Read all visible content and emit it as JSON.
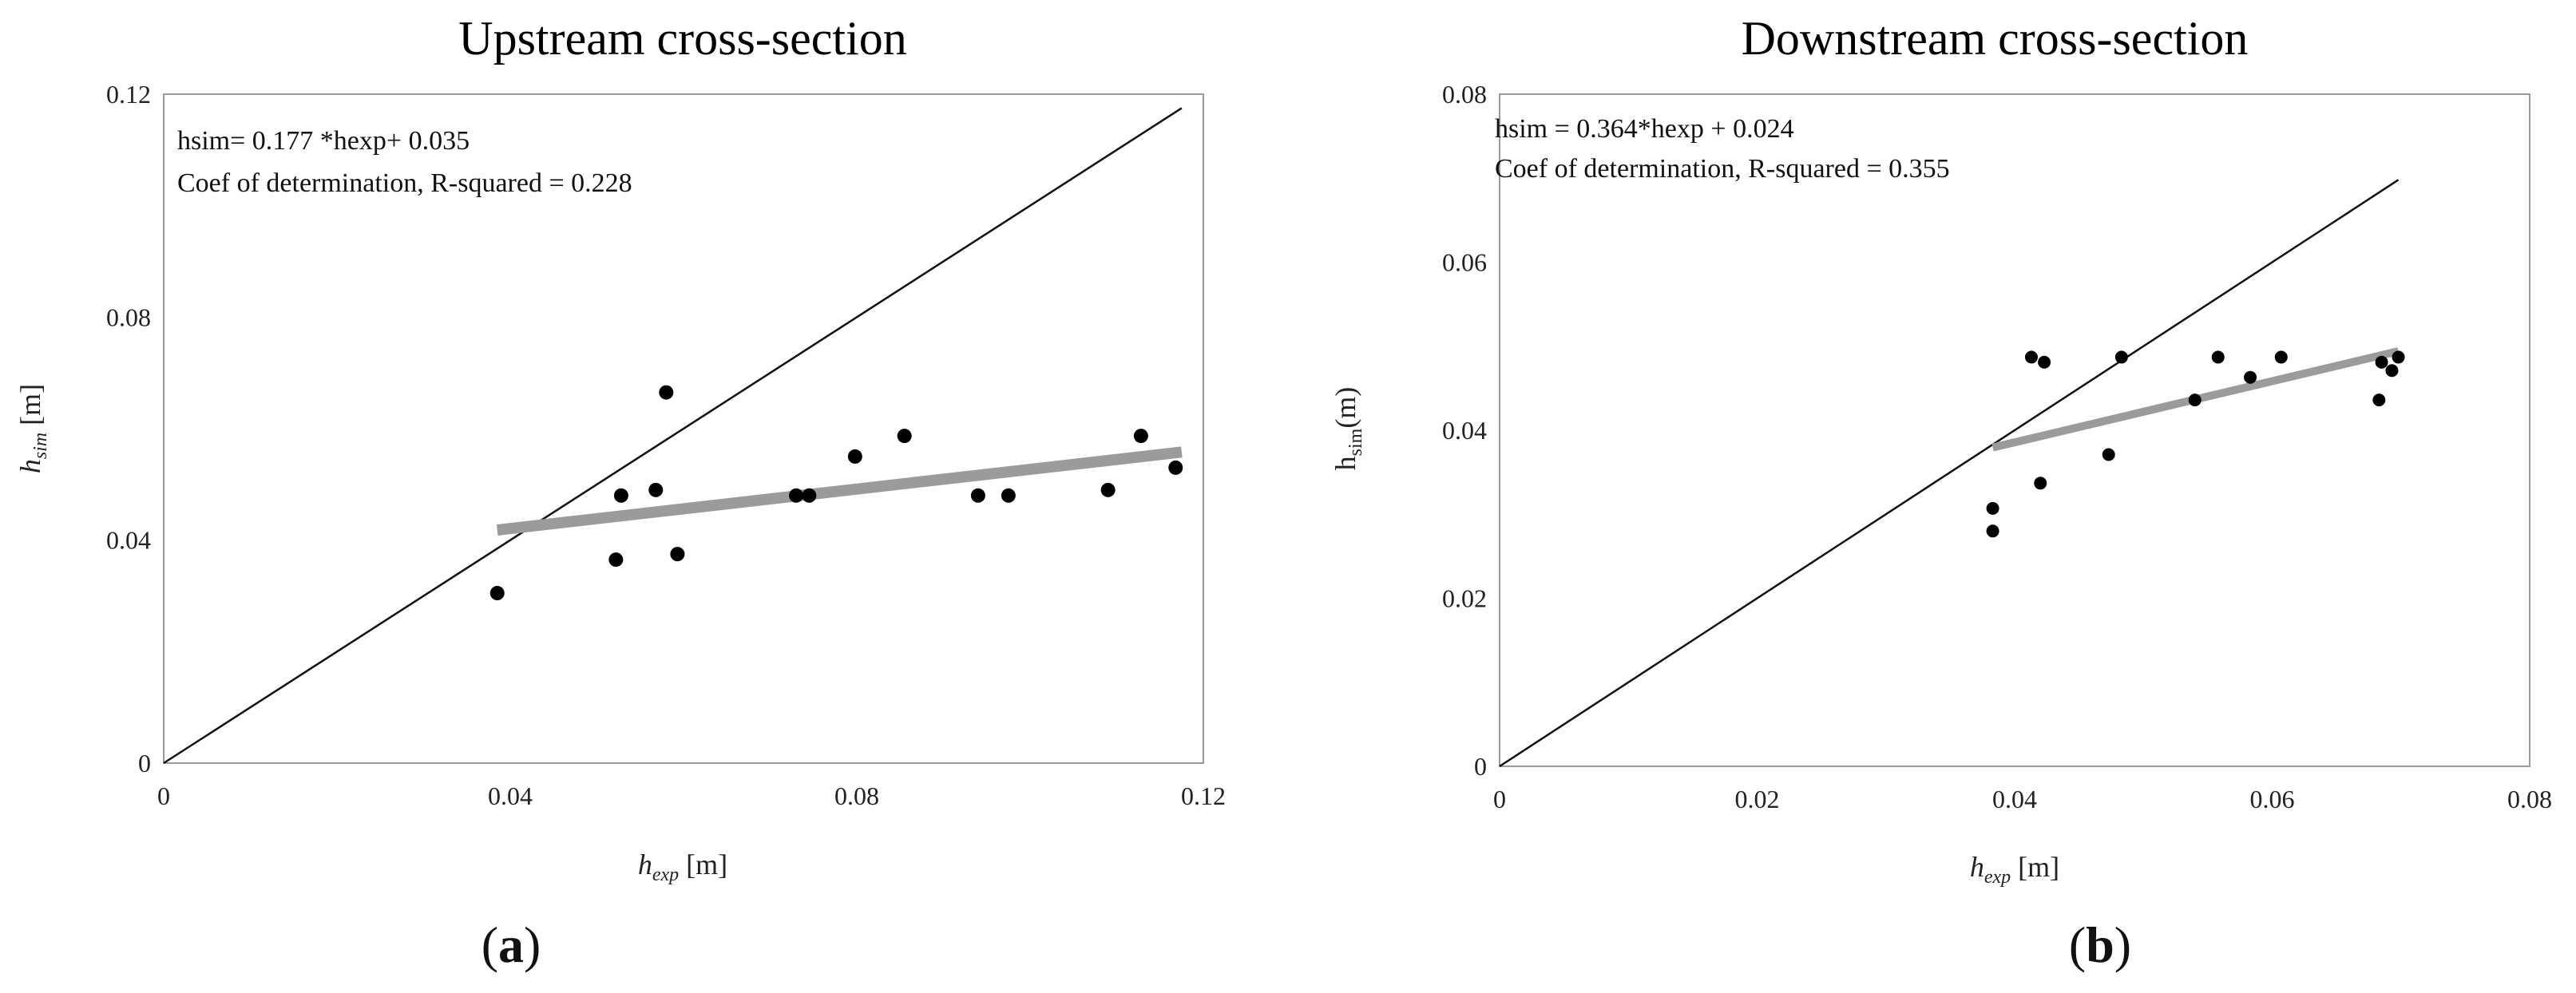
{
  "chart_data": [
    {
      "type": "scatter",
      "title": "Upstream cross-section",
      "xlabel": {
        "main": "h",
        "sub": "exp",
        "unit": " [m]"
      },
      "ylabel": {
        "main": "h",
        "sub": "sim",
        "unit": " [m]"
      },
      "xlim": [
        0,
        0.12
      ],
      "ylim": [
        0,
        0.12
      ],
      "xticks": [
        0,
        0.04,
        0.08,
        0.12
      ],
      "yticks": [
        0,
        0.04,
        0.08,
        0.12
      ],
      "xtick_labels": [
        "0",
        "0.04",
        "0.08",
        "0.12"
      ],
      "ytick_labels": [
        "0",
        "0.04",
        "0.08",
        "0.12"
      ],
      "points": [
        {
          "x": 0.0385,
          "y": 0.0305
        },
        {
          "x": 0.0522,
          "y": 0.0365
        },
        {
          "x": 0.0528,
          "y": 0.048
        },
        {
          "x": 0.0568,
          "y": 0.049
        },
        {
          "x": 0.058,
          "y": 0.0665
        },
        {
          "x": 0.0593,
          "y": 0.0375
        },
        {
          "x": 0.073,
          "y": 0.048
        },
        {
          "x": 0.0745,
          "y": 0.048
        },
        {
          "x": 0.0798,
          "y": 0.055
        },
        {
          "x": 0.0855,
          "y": 0.0587
        },
        {
          "x": 0.094,
          "y": 0.048
        },
        {
          "x": 0.0975,
          "y": 0.048
        },
        {
          "x": 0.109,
          "y": 0.049
        },
        {
          "x": 0.1128,
          "y": 0.0587
        },
        {
          "x": 0.1168,
          "y": 0.053
        }
      ],
      "identity_line": {
        "from": [
          0,
          0
        ],
        "to": [
          0.1175,
          0.1175
        ]
      },
      "fit_line": {
        "slope": 0.177,
        "intercept": 0.035,
        "x_range": [
          0.0385,
          0.1175
        ]
      },
      "annotations": [
        "hsim= 0.177 *hexp+ 0.035",
        "Coef of determination, R-squared = 0.228"
      ],
      "panel_label": "a"
    },
    {
      "type": "scatter",
      "title": "Downstream cross-section",
      "xlabel": {
        "main": "h",
        "sub": "exp",
        "unit": " [m]"
      },
      "ylabel": {
        "main": "h",
        "sub": "sim",
        "unit": "(m)"
      },
      "xlim": [
        0,
        0.08
      ],
      "ylim": [
        0,
        0.08
      ],
      "xticks": [
        0,
        0.02,
        0.04,
        0.06,
        0.08
      ],
      "yticks": [
        0,
        0.02,
        0.04,
        0.06,
        0.08
      ],
      "xtick_labels": [
        "0",
        "0.02",
        "0.04",
        "0.06",
        "0.08"
      ],
      "ytick_labels": [
        "0",
        "0.02",
        "0.04",
        "0.06",
        "0.08"
      ],
      "points": [
        {
          "x": 0.0383,
          "y": 0.0307
        },
        {
          "x": 0.0383,
          "y": 0.028
        },
        {
          "x": 0.0413,
          "y": 0.0487
        },
        {
          "x": 0.0423,
          "y": 0.0481
        },
        {
          "x": 0.042,
          "y": 0.0337
        },
        {
          "x": 0.0473,
          "y": 0.0371
        },
        {
          "x": 0.0483,
          "y": 0.0487
        },
        {
          "x": 0.054,
          "y": 0.0436
        },
        {
          "x": 0.0558,
          "y": 0.0487
        },
        {
          "x": 0.0583,
          "y": 0.0463
        },
        {
          "x": 0.0607,
          "y": 0.0487
        },
        {
          "x": 0.0685,
          "y": 0.0481
        },
        {
          "x": 0.0683,
          "y": 0.0436
        },
        {
          "x": 0.0693,
          "y": 0.0471
        },
        {
          "x": 0.0698,
          "y": 0.0487
        }
      ],
      "identity_line": {
        "from": [
          0,
          0
        ],
        "to": [
          0.0698,
          0.0698
        ]
      },
      "fit_line": {
        "slope": 0.364,
        "intercept": 0.024,
        "x_range": [
          0.0383,
          0.0698
        ]
      },
      "annotations": [
        "hsim = 0.364*hexp + 0.024",
        "Coef of determination, R-squared = 0.355"
      ],
      "panel_label": "b"
    }
  ]
}
